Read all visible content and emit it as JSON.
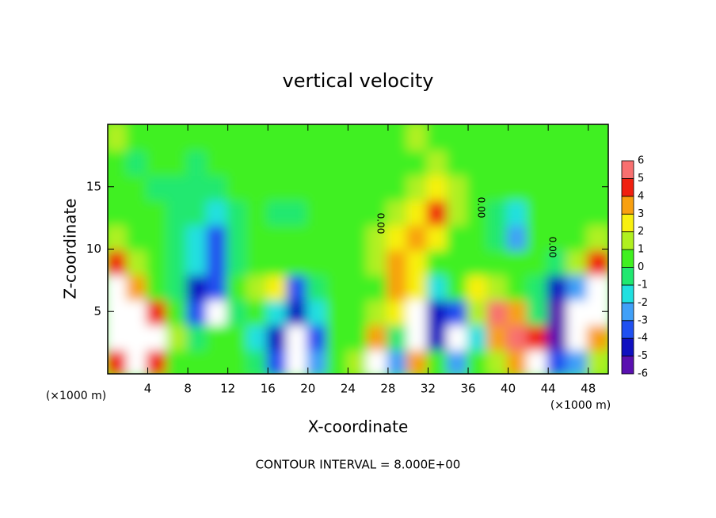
{
  "chart_data": {
    "type": "heatmap",
    "title": "vertical velocity",
    "xlabel": "X-coordinate",
    "ylabel": "Z-coordinate",
    "x_unit_label": "(×1000 m)",
    "footer": "CONTOUR INTERVAL = 8.000E+00",
    "contour_labels": [
      "0.00",
      "0.00",
      "0.00"
    ],
    "xlim": [
      0,
      50
    ],
    "ylim": [
      0,
      20
    ],
    "xticks": [
      4,
      8,
      12,
      16,
      20,
      24,
      28,
      32,
      36,
      40,
      44,
      48
    ],
    "yticks": [
      5,
      10,
      15
    ],
    "x": [
      1,
      3,
      5,
      7,
      9,
      11,
      13,
      15,
      17,
      19,
      21,
      23,
      25,
      27,
      29,
      31,
      33,
      35,
      37,
      39,
      41,
      43,
      45,
      47,
      49
    ],
    "y": [
      1,
      3,
      5,
      7,
      9,
      11,
      13,
      15,
      17,
      19
    ],
    "values": [
      [
        4,
        6,
        4,
        0,
        0,
        0,
        0,
        -1,
        -4,
        8,
        -3,
        0,
        1,
        6,
        -3,
        3,
        0,
        -3,
        0,
        1,
        3,
        6,
        -4,
        -3,
        1
      ],
      [
        8,
        10,
        6,
        1,
        -1,
        0,
        0,
        -2,
        -5,
        8,
        -4,
        0,
        0,
        3,
        -1,
        8,
        -5,
        8,
        -2,
        3,
        5,
        4,
        -6,
        9,
        3
      ],
      [
        9,
        10,
        4,
        0,
        -4,
        8,
        -1,
        0,
        -2,
        -5,
        -2,
        0,
        0,
        1,
        2,
        6,
        -5,
        -4,
        1,
        5,
        3,
        -1,
        -6,
        8,
        6
      ],
      [
        6,
        3,
        0,
        -1,
        -5,
        -4,
        0,
        1,
        2,
        -4,
        -1,
        0,
        0,
        0,
        3,
        2,
        -2,
        0,
        2,
        1,
        0,
        -1,
        -5,
        -3,
        8
      ],
      [
        4,
        1,
        0,
        -1,
        -2,
        -4,
        -1,
        0,
        0,
        0,
        0,
        0,
        0,
        1,
        3,
        2,
        0,
        0,
        0,
        0,
        0,
        0,
        -1,
        1,
        4
      ],
      [
        1,
        0,
        0,
        -1,
        -2,
        -4,
        -1,
        0,
        0,
        0,
        0,
        0,
        0,
        1,
        2,
        3,
        2,
        0,
        0,
        -1,
        -3,
        0,
        0,
        0,
        1
      ],
      [
        0,
        0,
        0,
        -1,
        -1,
        -2,
        -1,
        0,
        -1,
        -1,
        0,
        0,
        0,
        0,
        1,
        2,
        4,
        1,
        0,
        -1,
        -2,
        0,
        0,
        0,
        0
      ],
      [
        0,
        0,
        -1,
        -1,
        -1,
        -1,
        0,
        0,
        0,
        0,
        0,
        0,
        0,
        0,
        0,
        1,
        2,
        1,
        0,
        0,
        0,
        0,
        0,
        0,
        0
      ],
      [
        0,
        -1,
        0,
        0,
        -1,
        0,
        0,
        0,
        0,
        0,
        0,
        0,
        0,
        0,
        0,
        0,
        1,
        0,
        0,
        0,
        0,
        0,
        0,
        0,
        0
      ],
      [
        1,
        0,
        0,
        0,
        0,
        0,
        0,
        0,
        0,
        0,
        0,
        0,
        0,
        0,
        0,
        1,
        0,
        0,
        0,
        0,
        0,
        0,
        0,
        0,
        0
      ]
    ],
    "colorbar": {
      "ticks": [
        -6,
        -5,
        -4,
        -3,
        -2,
        -1,
        0,
        1,
        2,
        3,
        4,
        5,
        6
      ],
      "colors": [
        "#5a10b0",
        "#1010c0",
        "#2050f0",
        "#40a0f8",
        "#20e0e0",
        "#20e870",
        "#40f020",
        "#b0f020",
        "#f8f010",
        "#f8a010",
        "#f02010",
        "#f87070"
      ],
      "over_color": "#ffffff"
    }
  }
}
